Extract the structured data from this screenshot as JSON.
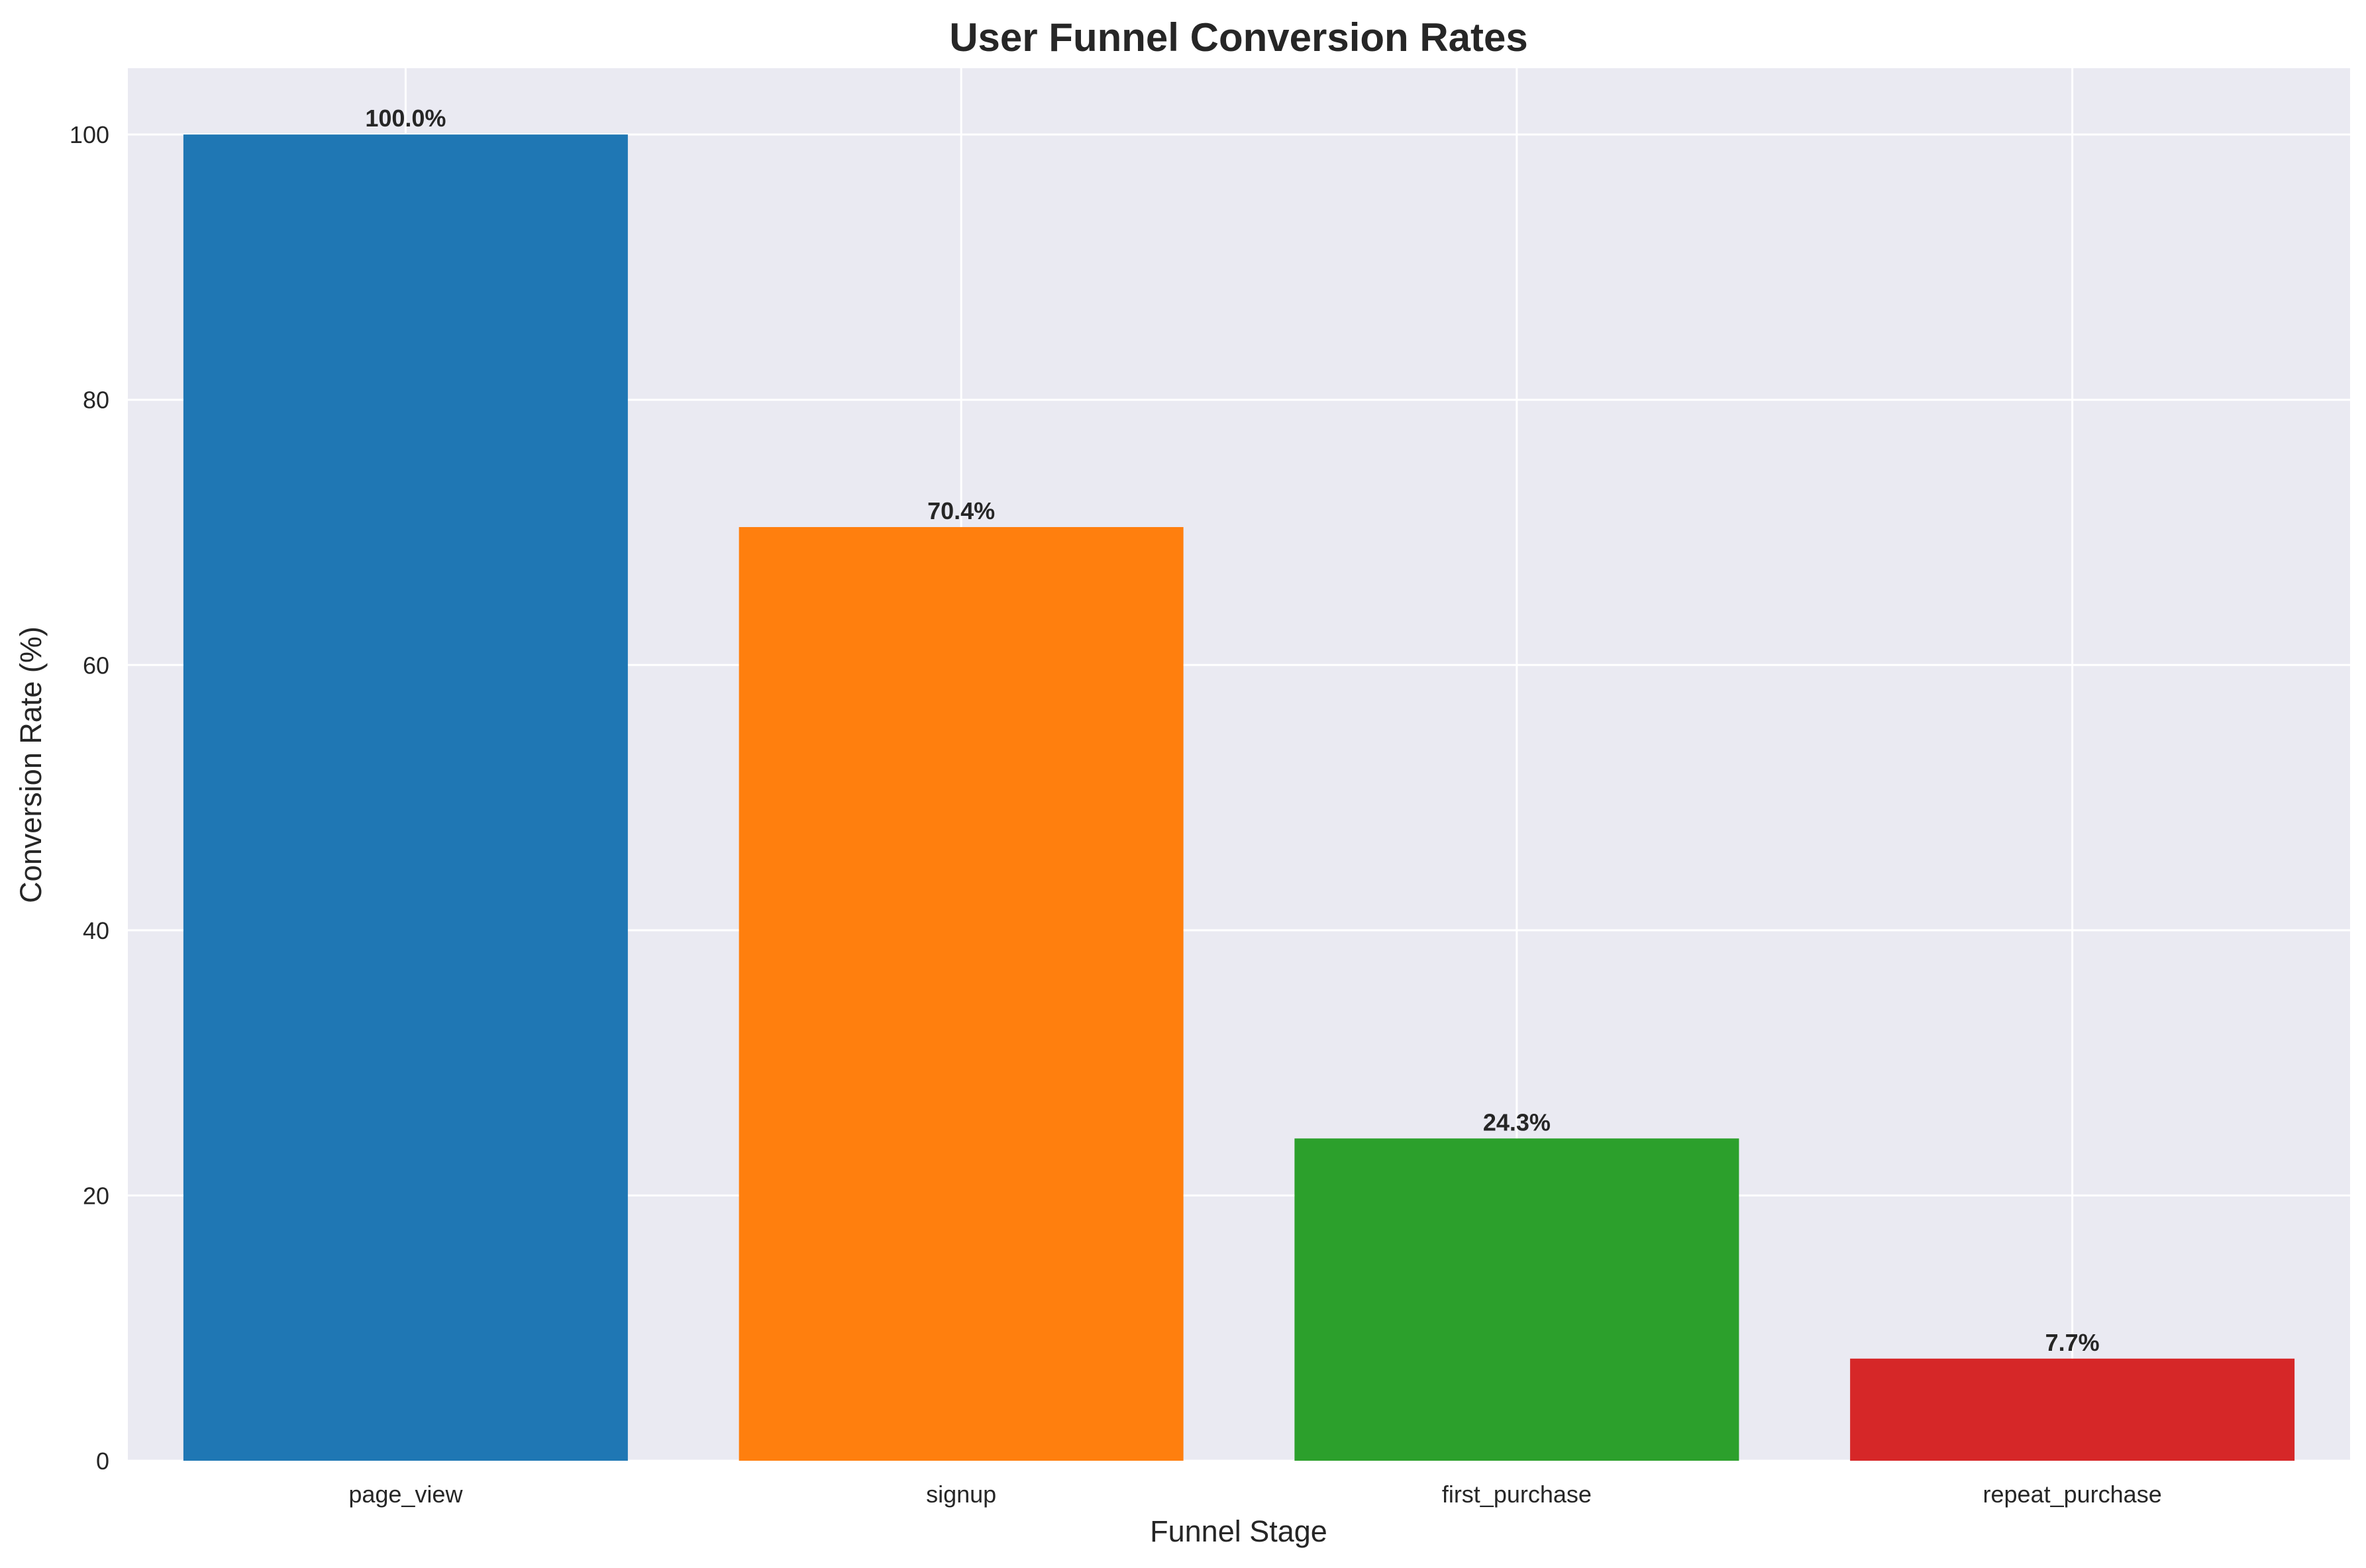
{
  "chart_data": {
    "type": "bar",
    "title": "User Funnel Conversion Rates",
    "xlabel": "Funnel Stage",
    "ylabel": "Conversion Rate (%)",
    "categories": [
      "page_view",
      "signup",
      "first_purchase",
      "repeat_purchase"
    ],
    "values": [
      100.0,
      70.4,
      24.3,
      7.7
    ],
    "value_labels": [
      "100.0%",
      "70.4%",
      "24.3%",
      "7.7%"
    ],
    "colors": [
      "#1f77b4",
      "#ff7f0e",
      "#2ca02c",
      "#d62728"
    ],
    "yticks": [
      0,
      20,
      40,
      60,
      80,
      100
    ],
    "ytick_labels": [
      "0",
      "20",
      "40",
      "60",
      "80",
      "100"
    ],
    "ylim": [
      0,
      105
    ],
    "grid": true,
    "legend": false,
    "background_color": "#eaeaf2",
    "grid_color": "#ffffff"
  }
}
